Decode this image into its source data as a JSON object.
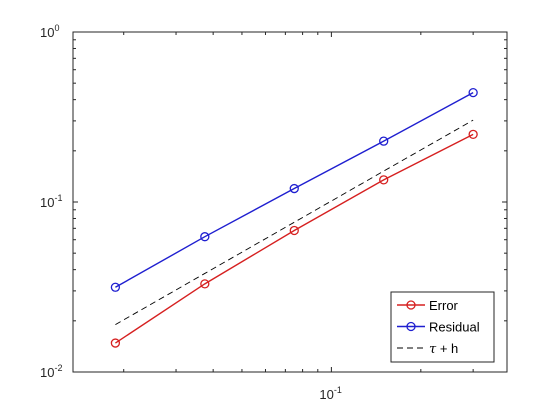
{
  "chart_data": {
    "type": "line",
    "xscale": "log",
    "yscale": "log",
    "xlim": [
      0.0135,
      0.39
    ],
    "ylim": [
      0.01,
      1
    ],
    "grid": false,
    "x_ticks": [
      {
        "value": 0.1,
        "base": "10",
        "exp": "-1"
      }
    ],
    "y_ticks": [
      {
        "value": 1,
        "base": "10",
        "exp": "0"
      },
      {
        "value": 0.1,
        "base": "10",
        "exp": "-1"
      },
      {
        "value": 0.01,
        "base": "10",
        "exp": "-2"
      }
    ],
    "x": [
      0.01875,
      0.0375,
      0.075,
      0.15,
      0.3
    ],
    "series": [
      {
        "name": "Error",
        "color": "#d62020",
        "style": "solid",
        "marker": "circle",
        "values": [
          0.0148,
          0.033,
          0.068,
          0.135,
          0.25
        ]
      },
      {
        "name": "Residual",
        "color": "#1f1fd0",
        "style": "solid",
        "marker": "circle",
        "values": [
          0.0315,
          0.0625,
          0.12,
          0.228,
          0.44
        ]
      },
      {
        "name_main": "τ",
        "name_rest": " + h",
        "color": "#000000",
        "style": "dashed",
        "marker": "none",
        "values": [
          0.019,
          0.038,
          0.076,
          0.152,
          0.303
        ]
      }
    ],
    "legend": {
      "position": "bottom-right"
    }
  }
}
